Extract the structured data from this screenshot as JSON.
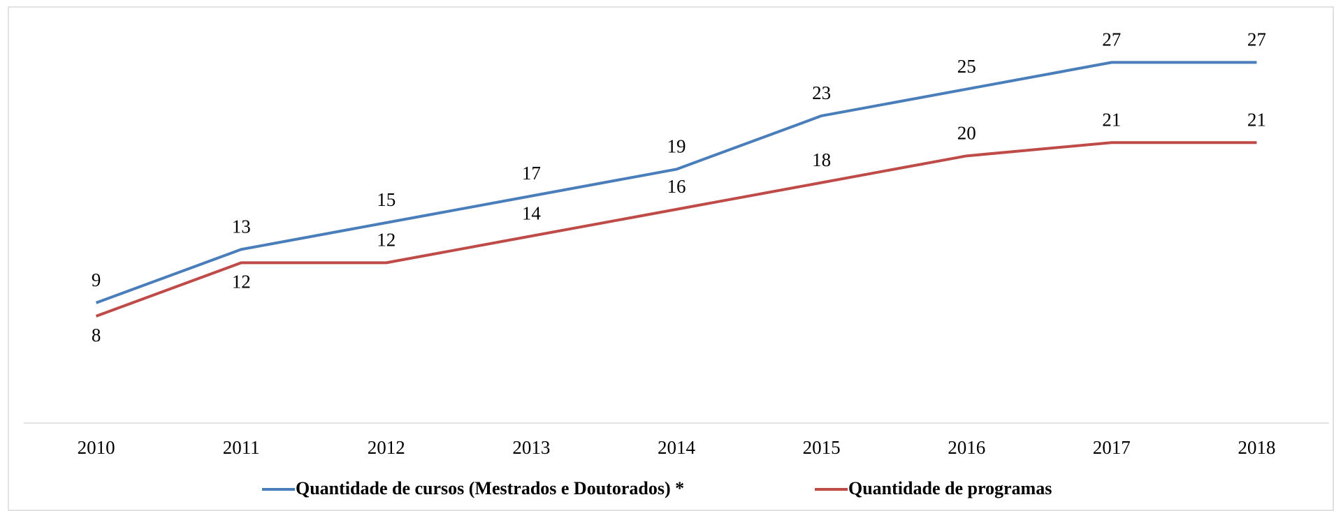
{
  "chart_data": {
    "type": "line",
    "categories": [
      "2010",
      "2011",
      "2012",
      "2013",
      "2014",
      "2015",
      "2016",
      "2017",
      "2018"
    ],
    "series": [
      {
        "name": "Quantidade de cursos (Mestrados e Doutorados) *",
        "color": "#4a7ebb",
        "values": [
          9,
          13,
          15,
          17,
          19,
          23,
          25,
          27,
          27
        ]
      },
      {
        "name": "Quantidade de programas",
        "color": "#be4b48",
        "values": [
          8,
          12,
          12,
          14,
          16,
          18,
          20,
          21,
          21
        ]
      }
    ],
    "ylim": [
      0,
      30
    ],
    "legend": "bottom"
  }
}
